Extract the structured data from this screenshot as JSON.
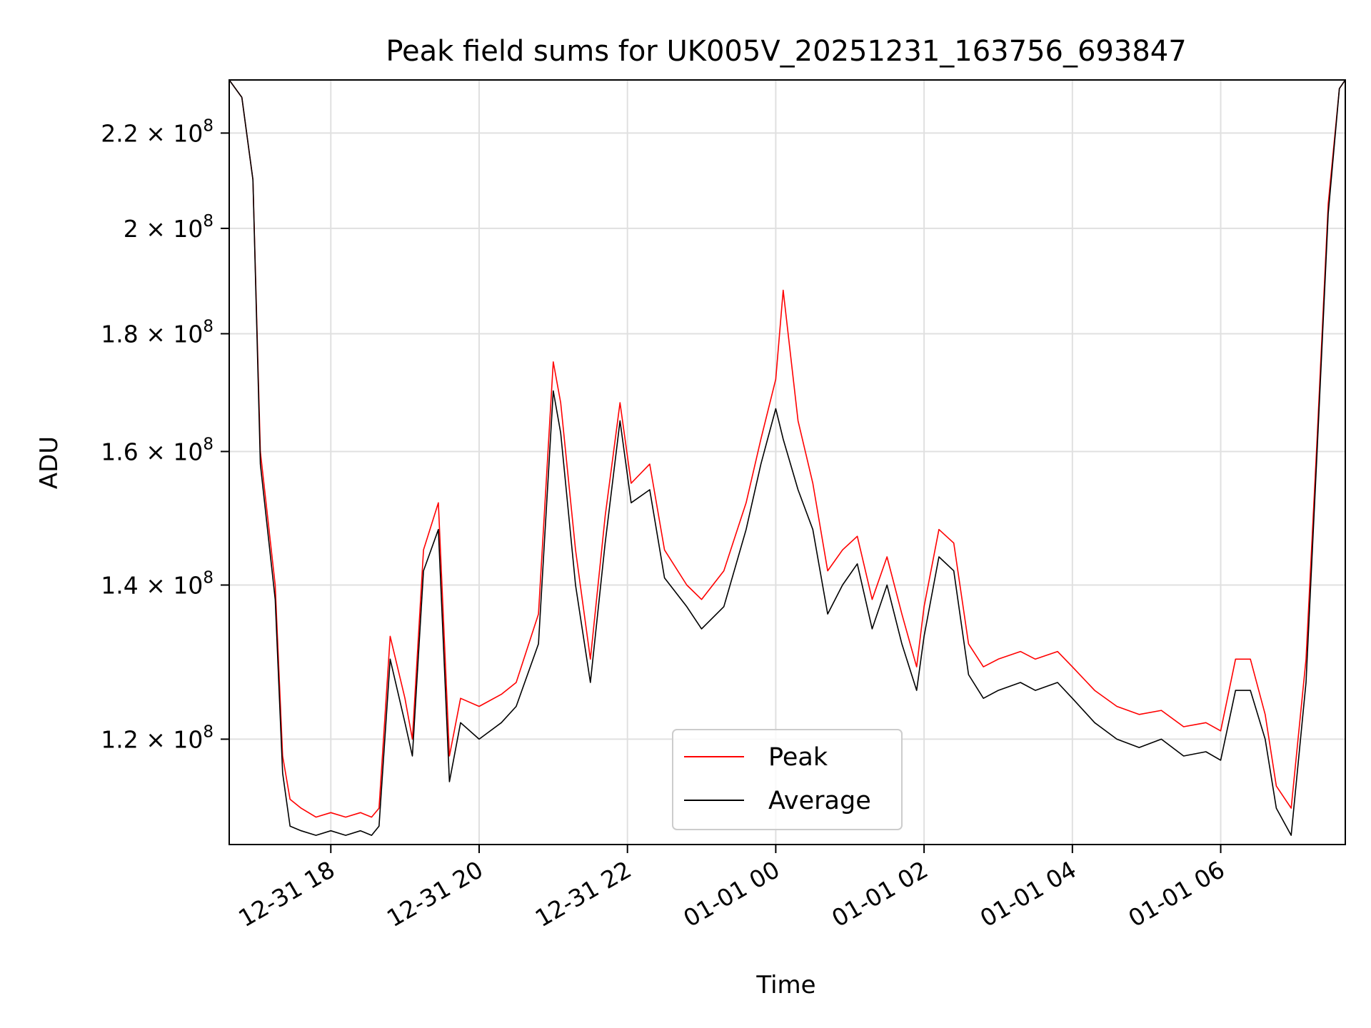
{
  "chart_data": {
    "type": "line",
    "title": "Peak field sums for UK005V_20251231_163756_693847",
    "xlabel": "Time",
    "ylabel": "ADU",
    "x_unit": "hours since 2025-12-31 00:00",
    "x_range": [
      16.63,
      31.68
    ],
    "ylim": [
      108000000.0,
      232000000.0
    ],
    "y_scale": "log",
    "grid": true,
    "legend_position": "lower-center",
    "x_ticks": [
      {
        "value": 18,
        "label": "12-31 18"
      },
      {
        "value": 20,
        "label": "12-31 20"
      },
      {
        "value": 22,
        "label": "12-31 22"
      },
      {
        "value": 24,
        "label": "01-01 00"
      },
      {
        "value": 26,
        "label": "01-01 02"
      },
      {
        "value": 28,
        "label": "01-01 04"
      },
      {
        "value": 30,
        "label": "01-01 06"
      }
    ],
    "y_ticks": [
      {
        "value": 120000000.0,
        "mantissa": "1.2",
        "exp": "8"
      },
      {
        "value": 140000000.0,
        "mantissa": "1.4",
        "exp": "8"
      },
      {
        "value": 160000000.0,
        "mantissa": "1.6",
        "exp": "8"
      },
      {
        "value": 180000000.0,
        "mantissa": "1.8",
        "exp": "8"
      },
      {
        "value": 200000000.0,
        "mantissa": "2",
        "exp": "8"
      },
      {
        "value": 220000000.0,
        "mantissa": "2.2",
        "exp": "8"
      }
    ],
    "tick_base": "10",
    "tick_times": "×",
    "series": [
      {
        "name": "Peak",
        "color": "#ff0000",
        "x": [
          16.63,
          16.8,
          16.95,
          17.05,
          17.25,
          17.35,
          17.45,
          17.6,
          17.8,
          18.0,
          18.2,
          18.4,
          18.55,
          18.65,
          18.8,
          19.0,
          19.1,
          19.25,
          19.45,
          19.6,
          19.75,
          20.0,
          20.3,
          20.5,
          20.8,
          21.0,
          21.1,
          21.3,
          21.5,
          21.7,
          21.9,
          22.05,
          22.3,
          22.5,
          22.8,
          23.0,
          23.3,
          23.6,
          23.8,
          24.0,
          24.1,
          24.3,
          24.5,
          24.7,
          24.9,
          25.1,
          25.3,
          25.5,
          25.7,
          25.9,
          26.0,
          26.2,
          26.4,
          26.6,
          26.8,
          27.0,
          27.3,
          27.5,
          27.8,
          28.0,
          28.3,
          28.6,
          28.9,
          29.2,
          29.5,
          29.8,
          30.0,
          30.2,
          30.4,
          30.6,
          30.75,
          30.95,
          31.15,
          31.3,
          31.45,
          31.6,
          31.68
        ],
        "y": [
          232000000.0,
          228000000.0,
          210000000.0,
          160000000.0,
          140000000.0,
          118000000.0,
          113000000.0,
          112000000.0,
          111000000.0,
          111500000.0,
          111000000.0,
          111500000.0,
          111000000.0,
          112000000.0,
          133000000.0,
          125000000.0,
          120000000.0,
          145000000.0,
          152000000.0,
          118000000.0,
          125000000.0,
          124000000.0,
          125500000.0,
          127000000.0,
          136000000.0,
          175000000.0,
          168000000.0,
          145000000.0,
          130000000.0,
          150000000.0,
          168000000.0,
          155000000.0,
          158000000.0,
          145000000.0,
          140000000.0,
          138000000.0,
          142000000.0,
          152000000.0,
          162000000.0,
          172000000.0,
          188000000.0,
          165000000.0,
          155000000.0,
          142000000.0,
          145000000.0,
          147000000.0,
          138000000.0,
          144000000.0,
          136000000.0,
          129000000.0,
          137000000.0,
          148000000.0,
          146000000.0,
          132000000.0,
          129000000.0,
          130000000.0,
          131000000.0,
          130000000.0,
          131000000.0,
          129000000.0,
          126000000.0,
          124000000.0,
          123000000.0,
          123500000.0,
          121500000.0,
          122000000.0,
          121000000.0,
          130000000.0,
          130000000.0,
          123000000.0,
          114500000.0,
          112000000.0,
          130000000.0,
          162000000.0,
          205000000.0,
          230000000.0,
          232000000.0
        ]
      },
      {
        "name": "Average",
        "color": "#000000",
        "x": [
          16.63,
          16.8,
          16.95,
          17.05,
          17.25,
          17.35,
          17.45,
          17.6,
          17.8,
          18.0,
          18.2,
          18.4,
          18.55,
          18.65,
          18.8,
          19.0,
          19.1,
          19.25,
          19.45,
          19.6,
          19.75,
          20.0,
          20.3,
          20.5,
          20.8,
          21.0,
          21.1,
          21.3,
          21.5,
          21.7,
          21.9,
          22.05,
          22.3,
          22.5,
          22.8,
          23.0,
          23.3,
          23.6,
          23.8,
          24.0,
          24.1,
          24.3,
          24.5,
          24.7,
          24.9,
          25.1,
          25.3,
          25.5,
          25.7,
          25.9,
          26.0,
          26.2,
          26.4,
          26.6,
          26.8,
          27.0,
          27.3,
          27.5,
          27.8,
          28.0,
          28.3,
          28.6,
          28.9,
          29.2,
          29.5,
          29.8,
          30.0,
          30.2,
          30.4,
          30.6,
          30.75,
          30.95,
          31.15,
          31.3,
          31.45,
          31.6,
          31.68
        ],
        "y": [
          232000000.0,
          228000000.0,
          210000000.0,
          158000000.0,
          138000000.0,
          116000000.0,
          110000000.0,
          109500000.0,
          109000000.0,
          109500000.0,
          109000000.0,
          109500000.0,
          109000000.0,
          110000000.0,
          130000000.0,
          122000000.0,
          118000000.0,
          142000000.0,
          148000000.0,
          115000000.0,
          122000000.0,
          120000000.0,
          122000000.0,
          124000000.0,
          132000000.0,
          170000000.0,
          163000000.0,
          140000000.0,
          127000000.0,
          146000000.0,
          165000000.0,
          152000000.0,
          154000000.0,
          141000000.0,
          137000000.0,
          134000000.0,
          137000000.0,
          148000000.0,
          158000000.0,
          167000000.0,
          162000000.0,
          154000000.0,
          148000000.0,
          136000000.0,
          140000000.0,
          143000000.0,
          134000000.0,
          140000000.0,
          132000000.0,
          126000000.0,
          133000000.0,
          144000000.0,
          142000000.0,
          128000000.0,
          125000000.0,
          126000000.0,
          127000000.0,
          126000000.0,
          127000000.0,
          125000000.0,
          122000000.0,
          120000000.0,
          119000000.0,
          120000000.0,
          118000000.0,
          118500000.0,
          117500000.0,
          126000000.0,
          126000000.0,
          120000000.0,
          112000000.0,
          109000000.0,
          127000000.0,
          160000000.0,
          203000000.0,
          230000000.0,
          232000000.0
        ]
      }
    ]
  }
}
